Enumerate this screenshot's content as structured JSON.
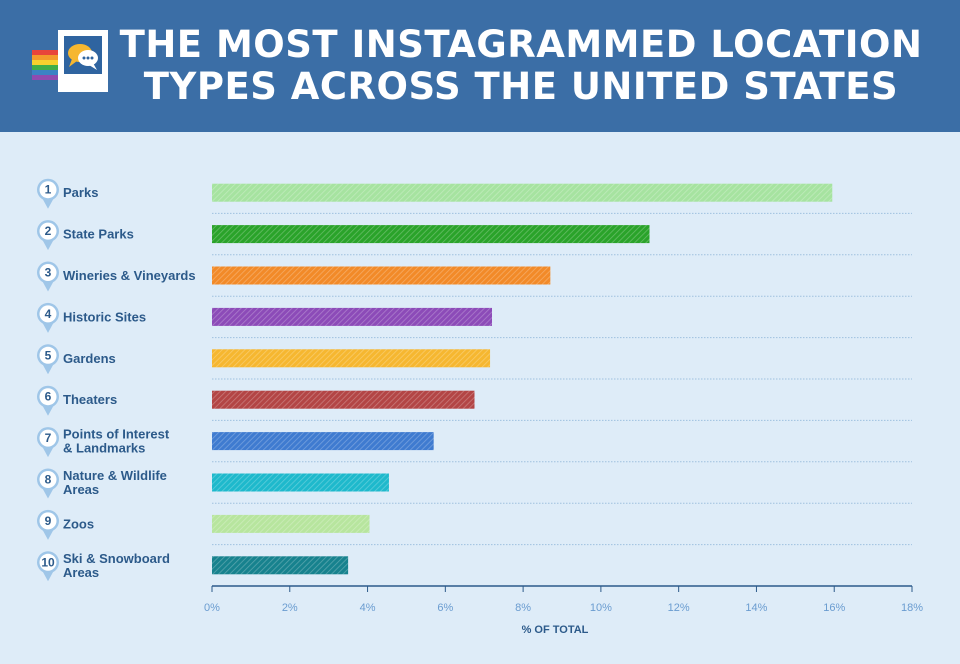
{
  "header": {
    "title_line1": "THE MOST INSTAGRAMMED LOCATION",
    "title_line2": "TYPES ACROSS THE UNITED STATES"
  },
  "chart_data": {
    "type": "bar",
    "orientation": "horizontal",
    "ranks": [
      "1",
      "2",
      "3",
      "4",
      "5",
      "6",
      "7",
      "8",
      "9",
      "10"
    ],
    "categories": [
      "Parks",
      "State Parks",
      "Wineries & Vineyards",
      "Historic Sites",
      "Gardens",
      "Theaters",
      "Points of Interest & Landmarks",
      "Nature & Wildlife Areas",
      "Zoos",
      "Ski & Snowboard Areas"
    ],
    "category_lines": [
      [
        "Parks"
      ],
      [
        "State Parks"
      ],
      [
        "Wineries & Vineyards"
      ],
      [
        "Historic Sites"
      ],
      [
        "Gardens"
      ],
      [
        "Theaters"
      ],
      [
        "Points of Interest",
        "& Landmarks"
      ],
      [
        "Nature & Wildlife",
        "Areas"
      ],
      [
        "Zoos"
      ],
      [
        "Ski & Snowboard",
        "Areas"
      ]
    ],
    "values": [
      15.95,
      11.25,
      8.7,
      7.2,
      7.15,
      6.75,
      5.7,
      4.55,
      4.05,
      3.5
    ],
    "colors": [
      "#a6e3a0",
      "#2aa32a",
      "#f28a28",
      "#8c4bb8",
      "#f6b730",
      "#b34545",
      "#3f7bd0",
      "#1eb9cc",
      "#b7e59e",
      "#17828e"
    ],
    "xlim": [
      0,
      18
    ],
    "xticks": [
      "0%",
      "2%",
      "4%",
      "6%",
      "8%",
      "10%",
      "12%",
      "14%",
      "16%",
      "18%"
    ],
    "xlabel": "% OF TOTAL",
    "grid": false,
    "legend": "none"
  }
}
